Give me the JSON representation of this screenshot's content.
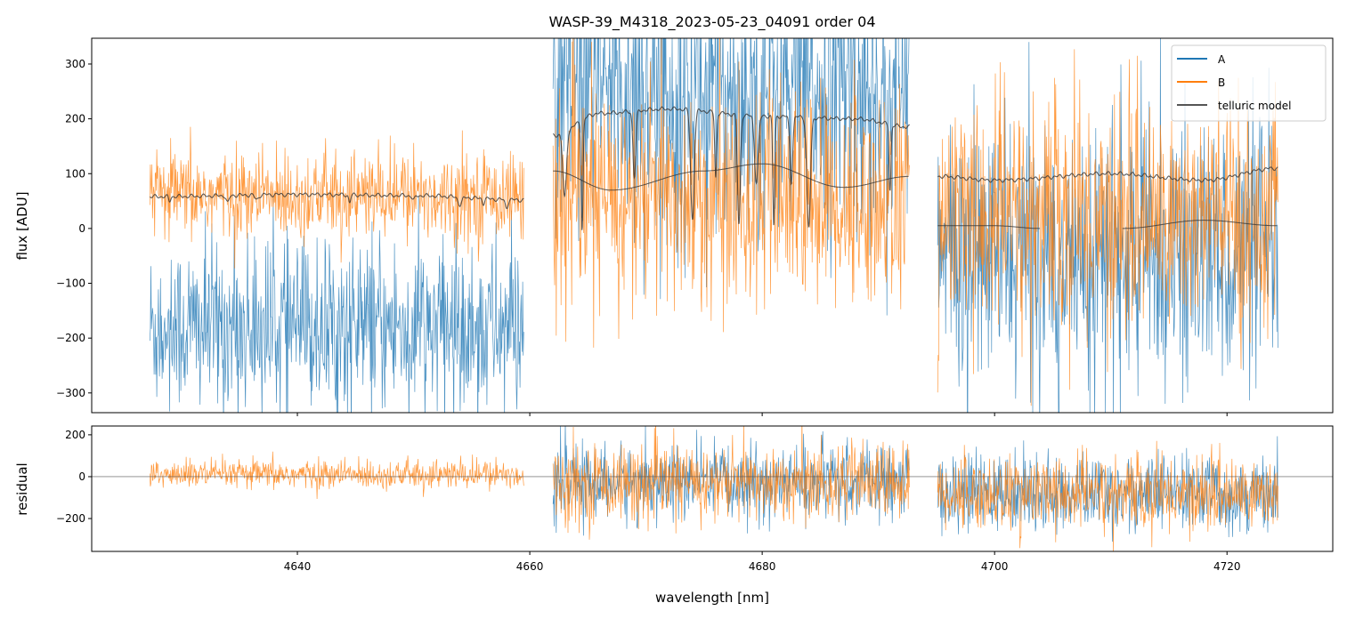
{
  "chart_data": [
    {
      "type": "line",
      "title": "WASP-39_M4318_2023-05-23_04091  order 04",
      "xlabel": "",
      "ylabel": "flux [ADU]",
      "xlim": [
        4622.3,
        4729.1
      ],
      "ylim": [
        -336,
        347
      ],
      "yticks": [
        300,
        200,
        100,
        0,
        -100,
        -200,
        -300
      ],
      "ytick_labels": [
        "300",
        "200",
        "100",
        "0",
        "−100",
        "−200",
        "−300"
      ],
      "legend": {
        "placement": "top-right",
        "entries": [
          "A",
          "B",
          "telluric model"
        ]
      },
      "segments": [
        [
          4627.3,
          4659.5
        ],
        [
          4662.0,
          4692.7
        ],
        [
          4695.1,
          4724.4
        ]
      ],
      "series": [
        {
          "name": "A",
          "color": "#1f77b4",
          "mean": [
            -180,
            250,
            -50
          ],
          "std": [
            80,
            130,
            120
          ]
        },
        {
          "name": "B",
          "color": "#ff7f0e",
          "mean": [
            60,
            50,
            20
          ],
          "std": [
            40,
            100,
            110
          ]
        }
      ],
      "telluric_model": {
        "color": "#333333",
        "upper": [
          {
            "x": [
              4627.3,
              4640,
              4650,
              4659.5
            ],
            "y": [
              58,
              62,
              60,
              52
            ]
          },
          {
            "x": [
              4662,
              4666,
              4672,
              4680,
              4688,
              4692.7
            ],
            "y": [
              170,
              210,
              218,
              205,
              200,
              185
            ]
          },
          {
            "x": [
              4695.1,
              4700,
              4710,
              4718,
              4724.4
            ],
            "y": [
              95,
              88,
              100,
              88,
              110
            ]
          }
        ],
        "lower": [
          {
            "x": [
              4662,
              4667,
              4675,
              4680,
              4687,
              4692.7
            ],
            "y": [
              105,
              70,
              105,
              118,
              75,
              95
            ]
          },
          {
            "x": [
              4695.1,
              4700,
              4704
            ],
            "y": [
              5,
              5,
              0
            ]
          },
          {
            "x": [
              4711,
              4718,
              4724.4
            ],
            "y": [
              0,
              15,
              5
            ]
          }
        ],
        "dips": [
          4629,
          4634,
          4636.5,
          4644.5,
          4650,
          4654,
          4656,
          4658,
          4663,
          4664.5,
          4669,
          4674,
          4676,
          4678,
          4679.5,
          4681,
          4682.5,
          4684,
          4691
        ]
      }
    },
    {
      "type": "line",
      "xlabel": "wavelength [nm]",
      "ylabel": "residual",
      "xlim": [
        4622.3,
        4729.1
      ],
      "ylim": [
        -357,
        242
      ],
      "xticks": [
        4640,
        4660,
        4680,
        4700,
        4720
      ],
      "xtick_labels": [
        "4640",
        "4660",
        "4680",
        "4700",
        "4720"
      ],
      "yticks": [
        200,
        0,
        -200
      ],
      "ytick_labels": [
        "200",
        "0",
        "−200"
      ],
      "series": [
        {
          "name": "A",
          "color": "#1f77b4",
          "mean": [
            null,
            -30,
            -80
          ],
          "std": [
            null,
            90,
            90
          ]
        },
        {
          "name": "B",
          "color": "#ff7f0e",
          "mean": [
            10,
            -30,
            -80
          ],
          "std": [
            35,
            90,
            90
          ]
        }
      ],
      "zero_line": 0
    }
  ]
}
